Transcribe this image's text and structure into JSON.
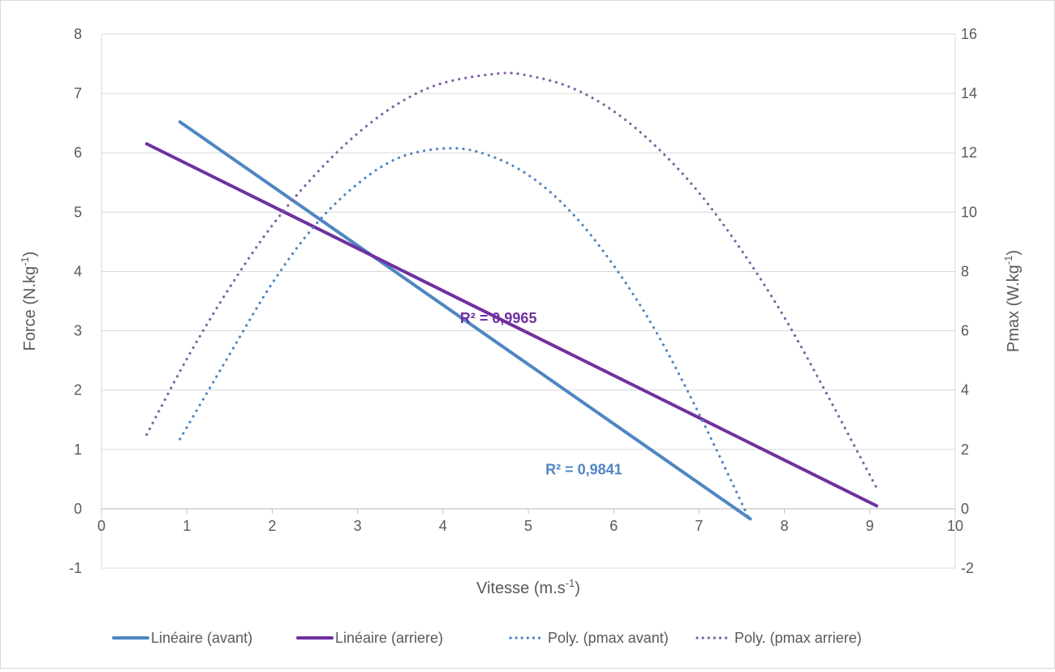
{
  "chart_data": {
    "type": "line",
    "xlabel": "Vitesse (m.s",
    "xlabel_sup": "-1",
    "xlabel_end": ")",
    "ylabel": "Force (N.kg",
    "ylabel_sup": "-1",
    "ylabel_end": ")",
    "y2label": "Pmax (W.kg",
    "y2label_sup": "-1",
    "y2label_end": ")",
    "xlim": [
      0,
      10
    ],
    "ylim": [
      -1,
      8
    ],
    "y2lim": [
      -2,
      16
    ],
    "x_ticks": [
      "0",
      "1",
      "2",
      "3",
      "4",
      "5",
      "6",
      "7",
      "8",
      "9",
      "10"
    ],
    "y_ticks": [
      "-1",
      "0",
      "1",
      "2",
      "3",
      "4",
      "5",
      "6",
      "7",
      "8"
    ],
    "y2_ticks": [
      "-2",
      "0",
      "2",
      "4",
      "6",
      "8",
      "10",
      "12",
      "14",
      "16"
    ],
    "grid": true,
    "legend_position": "bottom",
    "series": [
      {
        "name": "Linéaire (avant)",
        "axis": "left",
        "style": "solid",
        "color": "#4f86c2",
        "x": [
          0.92,
          7.6
        ],
        "y": [
          6.52,
          -0.17
        ]
      },
      {
        "name": "Linéaire (arriere)",
        "axis": "left",
        "style": "solid",
        "color": "#7030a0",
        "x": [
          0.53,
          9.08
        ],
        "y": [
          6.15,
          0.05
        ]
      },
      {
        "name": "Poly. (pmax avant)",
        "axis": "right",
        "style": "dotted",
        "color": "#4f86c2",
        "x": [
          0.92,
          1.5,
          2.0,
          2.5,
          3.0,
          3.5,
          4.06,
          4.5,
          5.0,
          5.5,
          6.0,
          6.5,
          7.0,
          7.58
        ],
        "y": [
          2.35,
          5.2,
          7.6,
          9.55,
          10.95,
          11.85,
          12.15,
          11.95,
          11.25,
          10.0,
          8.2,
          5.95,
          3.2,
          -0.3
        ]
      },
      {
        "name": "Poly. (pmax arriere)",
        "axis": "right",
        "style": "dotted",
        "color": "#8064a2",
        "x": [
          0.53,
          1.0,
          1.5,
          2.0,
          2.5,
          3.0,
          3.5,
          4.0,
          4.65,
          5.0,
          5.5,
          6.0,
          6.5,
          7.0,
          7.5,
          8.0,
          8.5,
          9.08
        ],
        "y": [
          2.5,
          5.05,
          7.45,
          9.55,
          11.25,
          12.65,
          13.7,
          14.35,
          14.67,
          14.6,
          14.2,
          13.4,
          12.2,
          10.65,
          8.7,
          6.45,
          3.85,
          0.7
        ]
      }
    ],
    "annotations": [
      {
        "text": "R² = 0,9965",
        "color": "#7030a0",
        "x": 4.65,
        "y": 3.13
      },
      {
        "text": "R² = 0,9841",
        "color": "#4f86c2",
        "x": 5.65,
        "y": 0.58
      }
    ]
  }
}
